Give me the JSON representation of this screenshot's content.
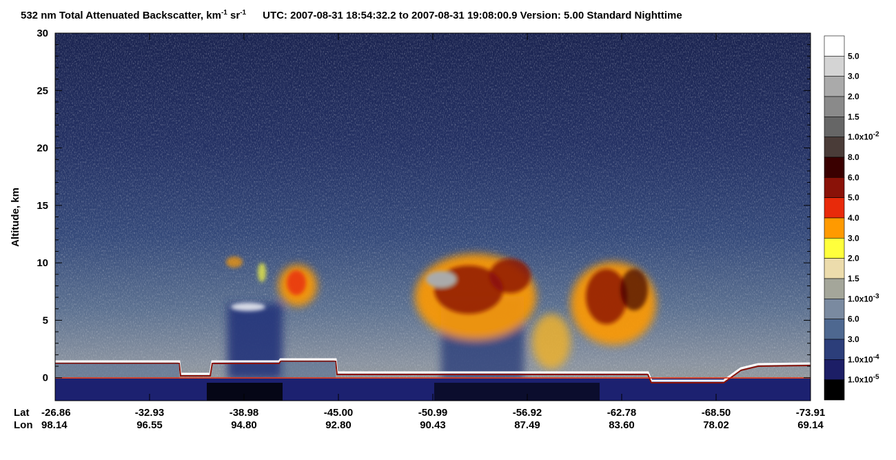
{
  "chart_data": {
    "type": "curtain",
    "title": [
      "532 nm Total Attenuated Backscatter, km",
      "-1",
      " sr",
      "-1",
      "UTC:  2007-08-31 18:54:32.2  to  2007-08-31 19:08:00.9    Version: 5.00  Standard  Nighttime"
    ],
    "y_label": "Altitude, km",
    "ylim": [
      -2,
      30
    ],
    "yticks": [
      0,
      5,
      10,
      15,
      20,
      25,
      30
    ],
    "x_rows": [
      {
        "name": "Lat",
        "labels": [
          "-26.86",
          "-32.93",
          "-38.98",
          "-45.00",
          "-50.99",
          "-56.92",
          "-62.78",
          "-68.50",
          "-73.91"
        ]
      },
      {
        "name": "Lon",
        "labels": [
          "98.14",
          "96.55",
          "94.80",
          "92.80",
          "90.43",
          "87.49",
          "83.60",
          "78.02",
          "69.14"
        ]
      }
    ],
    "colorbar": {
      "colors": [
        "#ffffff",
        "#d4d4d4",
        "#aaaaaa",
        "#8a8a8a",
        "#666666",
        "#4a3c38",
        "#3a0000",
        "#8a1208",
        "#e82a0a",
        "#ff9a00",
        "#ffff3c",
        "#ecdcac",
        "#a4a69a",
        "#7a8aa0",
        "#4e6890",
        "#2c3e7a",
        "#1c1e66",
        "#000000"
      ],
      "labels": [
        {
          "text": "5.0"
        },
        {
          "text": "3.0"
        },
        {
          "text": "2.0"
        },
        {
          "text": "1.5"
        },
        {
          "text": "1.0x10",
          "sup": "-2"
        },
        {
          "text": "8.0"
        },
        {
          "text": "6.0"
        },
        {
          "text": "5.0"
        },
        {
          "text": "4.0"
        },
        {
          "text": "3.0"
        },
        {
          "text": "2.0"
        },
        {
          "text": "1.5"
        },
        {
          "text": "1.0x10",
          "sup": "-3"
        },
        {
          "text": "6.0"
        },
        {
          "text": "3.0"
        },
        {
          "text": "1.0x10",
          "sup": "-4"
        },
        {
          "text": "1.0x10",
          "sup": "-5"
        }
      ]
    }
  }
}
